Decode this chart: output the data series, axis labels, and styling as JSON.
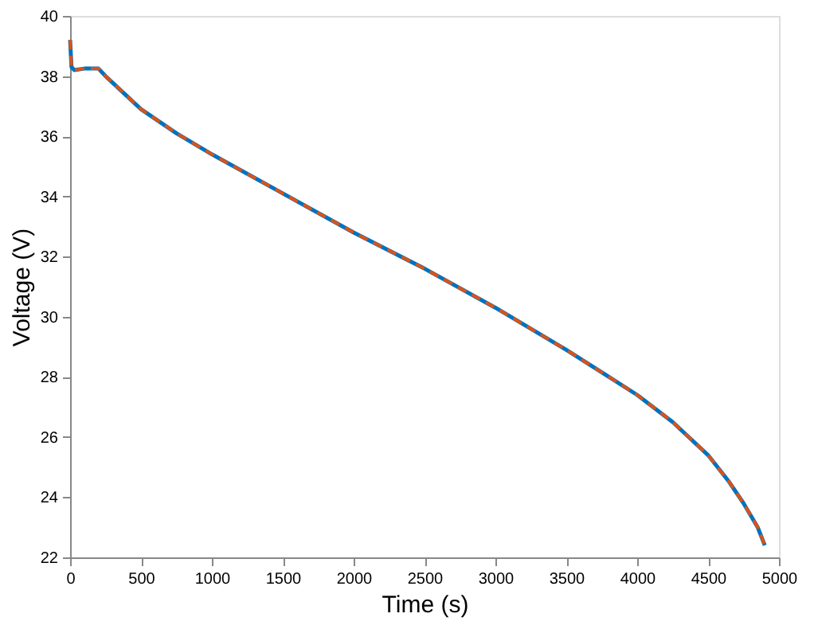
{
  "chart_data": {
    "type": "line",
    "xlabel": "Time (s)",
    "ylabel": "Voltage (V)",
    "xlim": [
      0,
      5000
    ],
    "xticks": [
      0,
      500,
      1000,
      1500,
      2000,
      2500,
      3000,
      3500,
      4000,
      4500,
      5000
    ],
    "ylim": [
      22,
      40
    ],
    "yticks": [
      22,
      24,
      26,
      28,
      30,
      32,
      34,
      36,
      38,
      40
    ],
    "grid": false,
    "marker": "none",
    "x": [
      0,
      10,
      30,
      100,
      200,
      250,
      500,
      750,
      1000,
      1500,
      2000,
      2500,
      3000,
      3500,
      4000,
      4250,
      4500,
      4650,
      4750,
      4850,
      4900
    ],
    "series": [
      {
        "color": "#0072bd",
        "line_style": "solid",
        "values": [
          39.2,
          38.3,
          38.2,
          38.25,
          38.25,
          38.0,
          36.9,
          36.1,
          35.4,
          34.1,
          32.8,
          31.6,
          30.3,
          28.9,
          27.4,
          26.5,
          25.4,
          24.5,
          23.8,
          23.0,
          22.4
        ]
      },
      {
        "color": "#d95319",
        "line_style": "dashed",
        "values": [
          39.2,
          38.3,
          38.2,
          38.25,
          38.25,
          38.0,
          36.9,
          36.1,
          35.4,
          34.1,
          32.8,
          31.6,
          30.3,
          28.9,
          27.4,
          26.5,
          25.4,
          24.5,
          23.8,
          23.0,
          22.4
        ]
      }
    ]
  }
}
